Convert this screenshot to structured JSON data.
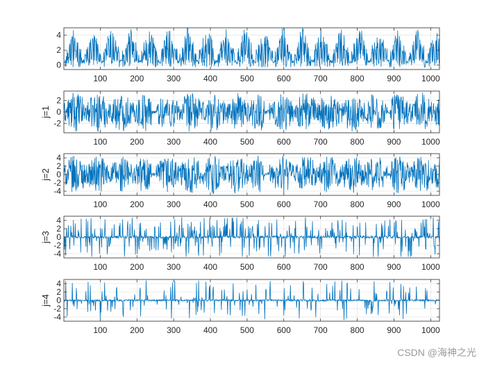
{
  "watermark": "CSDN @海神之光",
  "chart_data": [
    {
      "type": "line",
      "ylabel": "",
      "xlim": [
        1,
        1024
      ],
      "ylim": [
        -0.6,
        5
      ],
      "xticks": [
        100,
        200,
        300,
        400,
        500,
        600,
        700,
        800,
        900,
        1000
      ],
      "yticks": [
        0,
        2,
        4
      ],
      "grid": true,
      "color": "#0072BD",
      "signal": "original",
      "amplitude": 5
    },
    {
      "type": "line",
      "ylabel": "j=1",
      "xlim": [
        1,
        1024
      ],
      "ylim": [
        -3.6,
        3.6
      ],
      "xticks": [
        100,
        200,
        300,
        400,
        500,
        600,
        700,
        800,
        900,
        1000
      ],
      "yticks": [
        -2,
        0,
        2
      ],
      "grid": true,
      "color": "#0072BD",
      "signal": "detail",
      "amplitude": 3.4
    },
    {
      "type": "line",
      "ylabel": "j=2",
      "xlim": [
        1,
        1024
      ],
      "ylim": [
        -5,
        5
      ],
      "xticks": [
        100,
        200,
        300,
        400,
        500,
        600,
        700,
        800,
        900,
        1000
      ],
      "yticks": [
        -4,
        -2,
        0,
        2,
        4
      ],
      "grid": true,
      "color": "#0072BD",
      "signal": "detail",
      "amplitude": 4.6
    },
    {
      "type": "line",
      "ylabel": "j=3",
      "xlim": [
        1,
        1024
      ],
      "ylim": [
        -5,
        5
      ],
      "xticks": [
        100,
        200,
        300,
        400,
        500,
        600,
        700,
        800,
        900,
        1000
      ],
      "yticks": [
        -4,
        -2,
        0,
        2,
        4
      ],
      "grid": true,
      "color": "#0072BD",
      "signal": "sparse",
      "amplitude": 4.8
    },
    {
      "type": "line",
      "ylabel": "j=4",
      "xlim": [
        1,
        1024
      ],
      "ylim": [
        -5,
        5
      ],
      "xticks": [
        100,
        200,
        300,
        400,
        500,
        600,
        700,
        800,
        900,
        1000
      ],
      "yticks": [
        -4,
        -2,
        0,
        2,
        4
      ],
      "grid": true,
      "color": "#0072BD",
      "signal": "sparse2",
      "amplitude": 4.8
    }
  ]
}
